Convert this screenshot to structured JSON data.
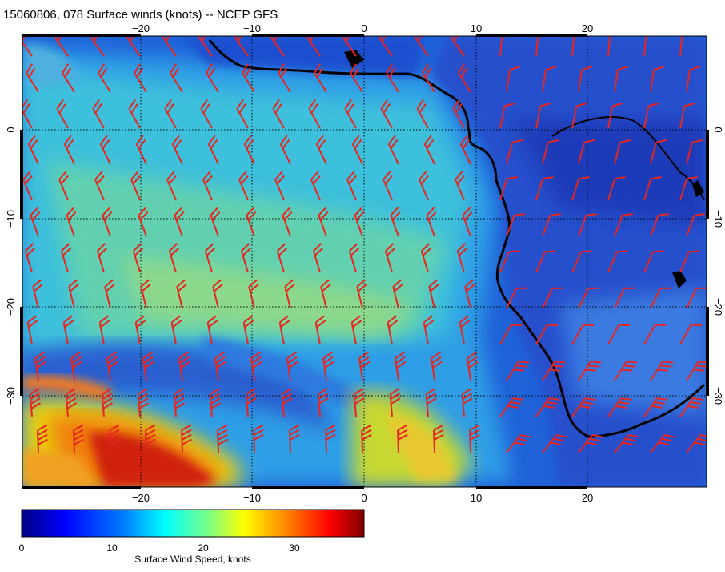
{
  "title": "15060806, 078 Surface winds (knots) -- NCEP GFS",
  "map": {
    "lon_range": [
      -30,
      30
    ],
    "lat_range": [
      10,
      -40
    ],
    "lon_ticks": [
      "−20",
      "−10",
      "0",
      "10",
      "20"
    ],
    "lat_ticks": [
      "0",
      "−10",
      "−20",
      "−30"
    ],
    "grid": "dotted",
    "coastline_color": "#000000",
    "barb_color": "#e8251e"
  },
  "colorbar": {
    "label": "Surface Wind Speed, knots",
    "ticks": [
      "0",
      "10",
      "20",
      "30"
    ],
    "range": [
      0,
      38
    ],
    "colormap": [
      "#00007f",
      "#0000ff",
      "#007fff",
      "#00ffff",
      "#7fff7f",
      "#ffff00",
      "#ff7f00",
      "#ff0000",
      "#7f0000"
    ]
  }
}
